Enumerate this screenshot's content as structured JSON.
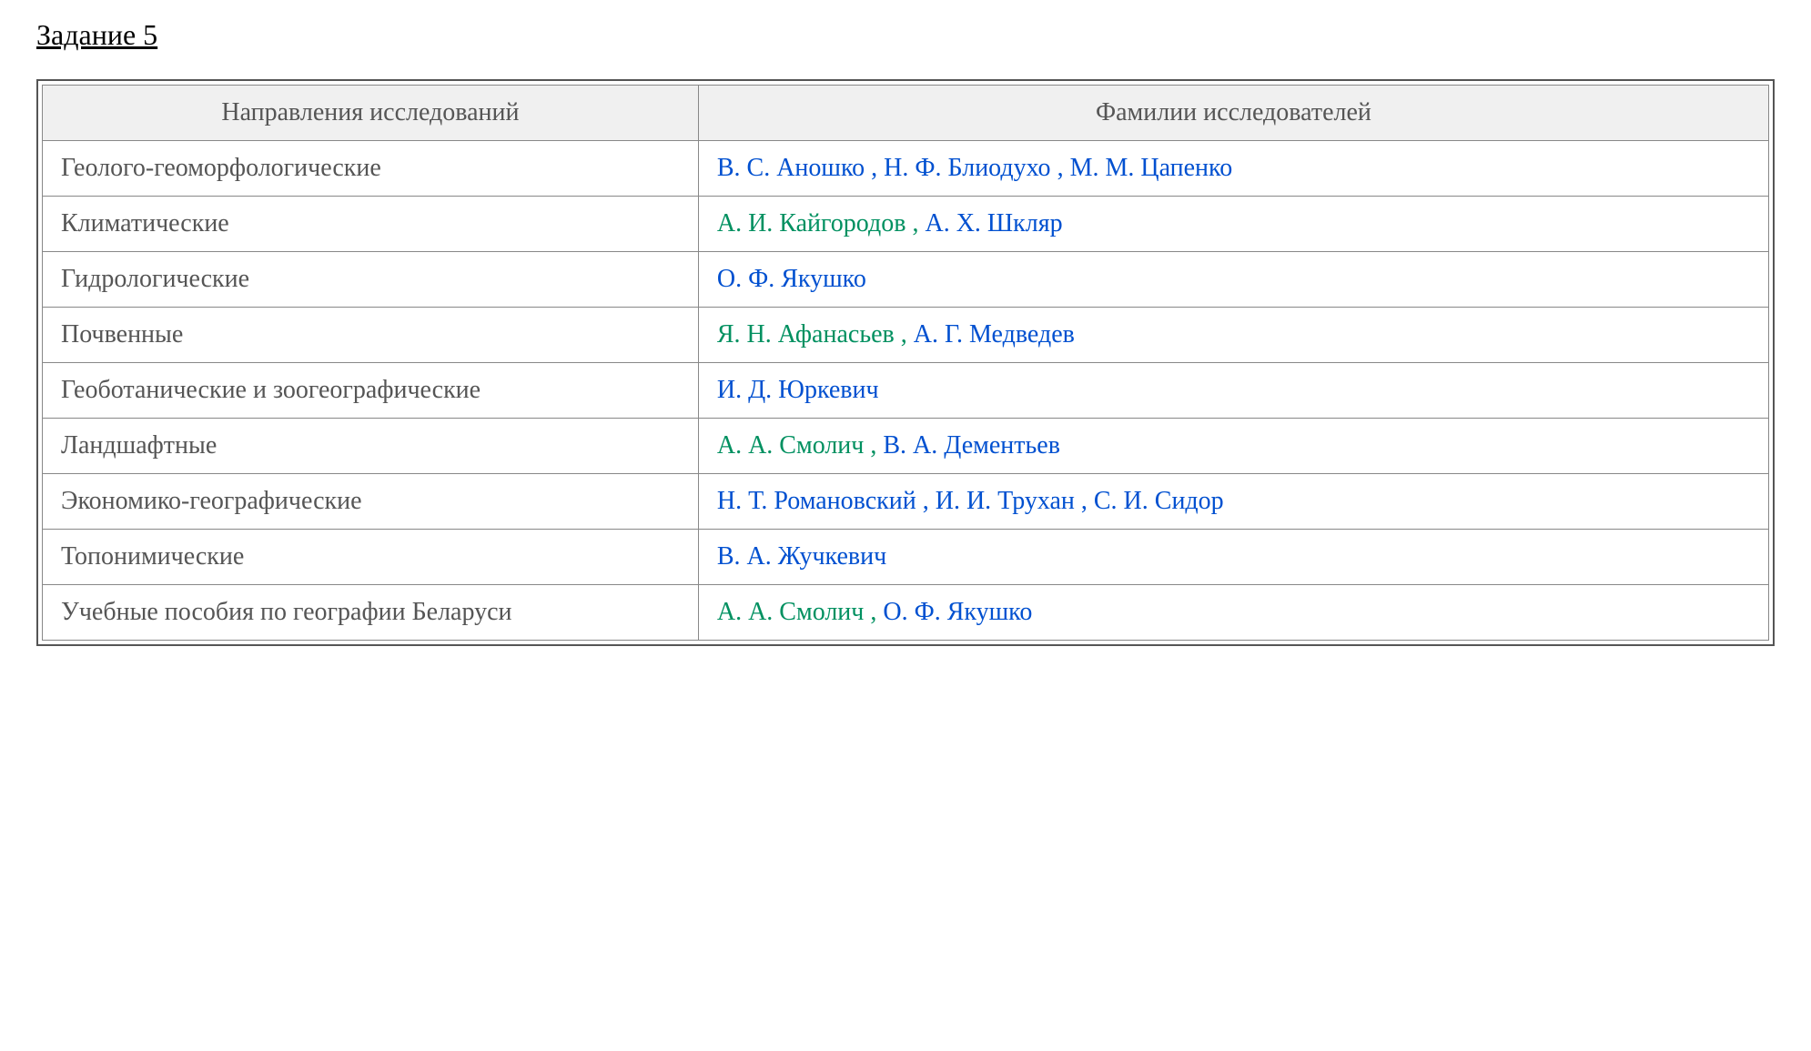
{
  "title": "Задание 5",
  "table": {
    "headers": {
      "directions": "Направления исследований",
      "researchers": "Фамилии исследователей"
    },
    "rows": [
      {
        "direction": "Геолого-геоморфологические",
        "researchers": [
          {
            "name": "В. С. Аношко",
            "color": "blue"
          },
          {
            "name": "Н. Ф. Блиодухо",
            "color": "blue"
          },
          {
            "name": "М. М. Цапенко",
            "color": "blue"
          }
        ],
        "sep_color": "blue"
      },
      {
        "direction": "Климатические",
        "researchers": [
          {
            "name": "А. И. Кайгородов",
            "color": "green"
          },
          {
            "name": "А. Х. Шкляр",
            "color": "blue"
          }
        ],
        "sep_color": "green"
      },
      {
        "direction": "Гидрологические",
        "researchers": [
          {
            "name": "О. Ф. Якушко",
            "color": "blue"
          }
        ],
        "sep_color": "blue"
      },
      {
        "direction": "Почвенные",
        "researchers": [
          {
            "name": "Я. Н. Афанасьев",
            "color": "green"
          },
          {
            "name": "А. Г. Медведев",
            "color": "blue"
          }
        ],
        "sep_color": "green"
      },
      {
        "direction": "Геоботанические и зоогеографические",
        "researchers": [
          {
            "name": "И. Д. Юркевич",
            "color": "blue"
          }
        ],
        "sep_color": "blue"
      },
      {
        "direction": "Ландшафтные",
        "researchers": [
          {
            "name": "А. А. Смолич",
            "color": "green"
          },
          {
            "name": "В. А. Дементьев",
            "color": "blue"
          }
        ],
        "sep_color": "green"
      },
      {
        "direction": "Экономико-географические",
        "researchers": [
          {
            "name": "Н. Т. Романовский",
            "color": "blue"
          },
          {
            "name": "И. И. Трухан",
            "color": "blue"
          },
          {
            "name": "С. И. Сидор",
            "color": "blue"
          }
        ],
        "sep_color": "blue"
      },
      {
        "direction": "Топонимические",
        "researchers": [
          {
            "name": "В. А. Жучкевич",
            "color": "blue"
          }
        ],
        "sep_color": "blue"
      },
      {
        "direction": "Учебные пособия по географии Беларуси",
        "researchers": [
          {
            "name": "А. А. Смолич",
            "color": "green"
          },
          {
            "name": "О. Ф. Якушко",
            "color": "blue"
          }
        ],
        "sep_color": "green"
      }
    ]
  },
  "colors": {
    "blue": "#0050d0",
    "green": "#009060",
    "header_bg": "#f0f0f0",
    "border": "#888888",
    "text_muted": "#555555"
  }
}
